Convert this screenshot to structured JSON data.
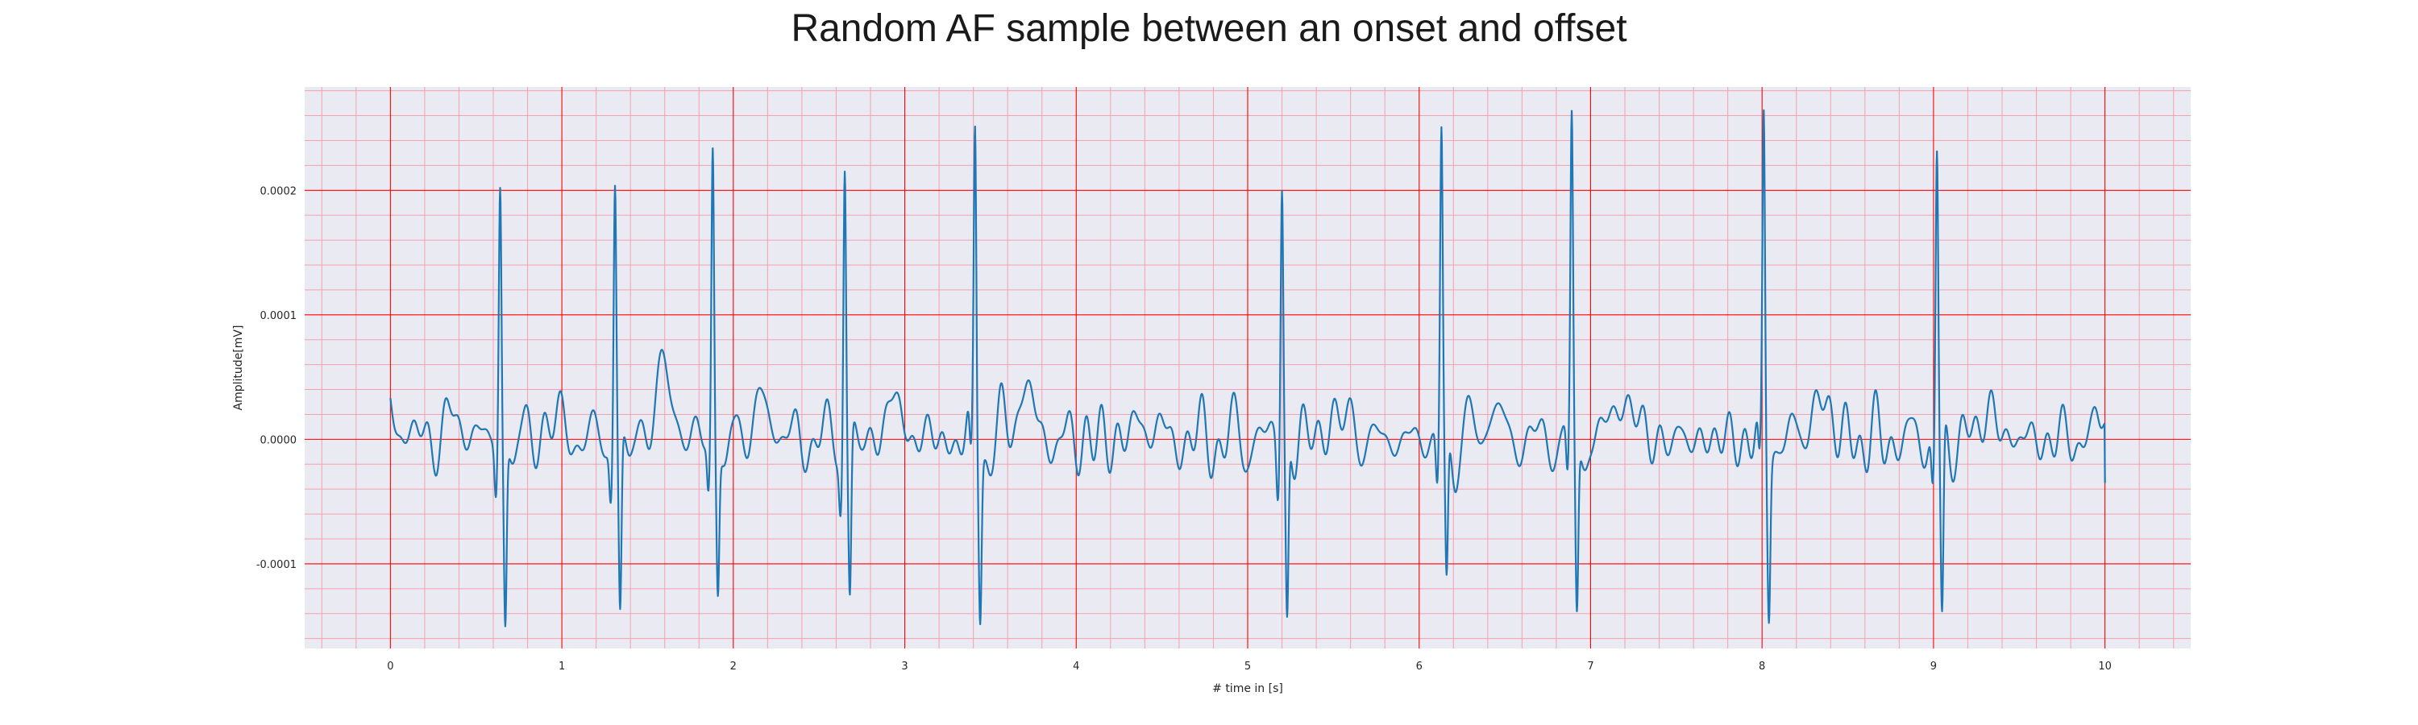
{
  "chart_data": {
    "type": "line",
    "title": "Random AF sample between an onset and offset",
    "xlabel": "# time in [s]",
    "ylabel": "Amplitude[mV]",
    "xlim": [
      -0.5,
      10.5
    ],
    "ylim": [
      -0.000168,
      0.000283
    ],
    "x_ticks": [
      0,
      1,
      2,
      3,
      4,
      5,
      6,
      7,
      8,
      9,
      10
    ],
    "y_ticks": [
      -0.0001,
      0.0,
      0.0001,
      0.0002
    ],
    "y_tick_labels": [
      "-0.0001",
      "0.0000",
      "0.0001",
      "0.0002"
    ],
    "grid": true,
    "minor_grid": true,
    "background_color": "#eaeaf2",
    "major_grid_color": "#ff0000",
    "minor_grid_color": "#f4a0b0",
    "series": [
      {
        "color": "#1f77b4",
        "x_start": 0.0,
        "x_end": 10.0,
        "baseline_start": 3.5e-05,
        "beats": [
          {
            "t": 0.64,
            "peak": 0.00021,
            "trough": -0.000142
          },
          {
            "t": 1.31,
            "peak": 0.000213,
            "trough": -0.00014
          },
          {
            "t": 1.88,
            "peak": 0.000235,
            "trough": -0.000112
          },
          {
            "t": 2.65,
            "peak": 0.000235,
            "trough": -0.000125
          },
          {
            "t": 3.41,
            "peak": 0.000252,
            "trough": -0.00012
          },
          {
            "t": 5.2,
            "peak": 0.000217,
            "trough": -0.000141
          },
          {
            "t": 6.13,
            "peak": 0.000248,
            "trough": -0.000118
          },
          {
            "t": 6.89,
            "peak": 0.000255,
            "trough": -0.000134
          },
          {
            "t": 8.01,
            "peak": 0.000263,
            "trough": -0.000118
          },
          {
            "t": 9.02,
            "peak": 0.000237,
            "trough": -0.000147
          }
        ],
        "waves": [
          {
            "t": 0.39,
            "amp": 1.8e-05,
            "w": 0.05
          },
          {
            "t": 0.97,
            "amp": 1.6e-05,
            "w": 0.05
          },
          {
            "t": 1.6,
            "amp": 5.2e-05,
            "w": 0.05
          },
          {
            "t": 2.18,
            "amp": 2.8e-05,
            "w": 0.05
          },
          {
            "t": 2.95,
            "amp": 2.7e-05,
            "w": 0.05
          },
          {
            "t": 3.7,
            "amp": 4.7e-05,
            "w": 0.04
          },
          {
            "t": 4.4,
            "amp": 1.6e-05,
            "w": 0.05
          },
          {
            "t": 5.54,
            "amp": 2.2e-05,
            "w": 0.05
          },
          {
            "t": 6.43,
            "amp": 2.2e-05,
            "w": 0.05
          },
          {
            "t": 7.2,
            "amp": 3.7e-05,
            "w": 0.05
          },
          {
            "t": 8.35,
            "amp": 3.4e-05,
            "w": 0.05
          },
          {
            "t": 9.33,
            "amp": 2.1e-05,
            "w": 0.05
          },
          {
            "t": 9.95,
            "amp": 2.4e-05,
            "w": 0.02
          }
        ]
      }
    ]
  }
}
